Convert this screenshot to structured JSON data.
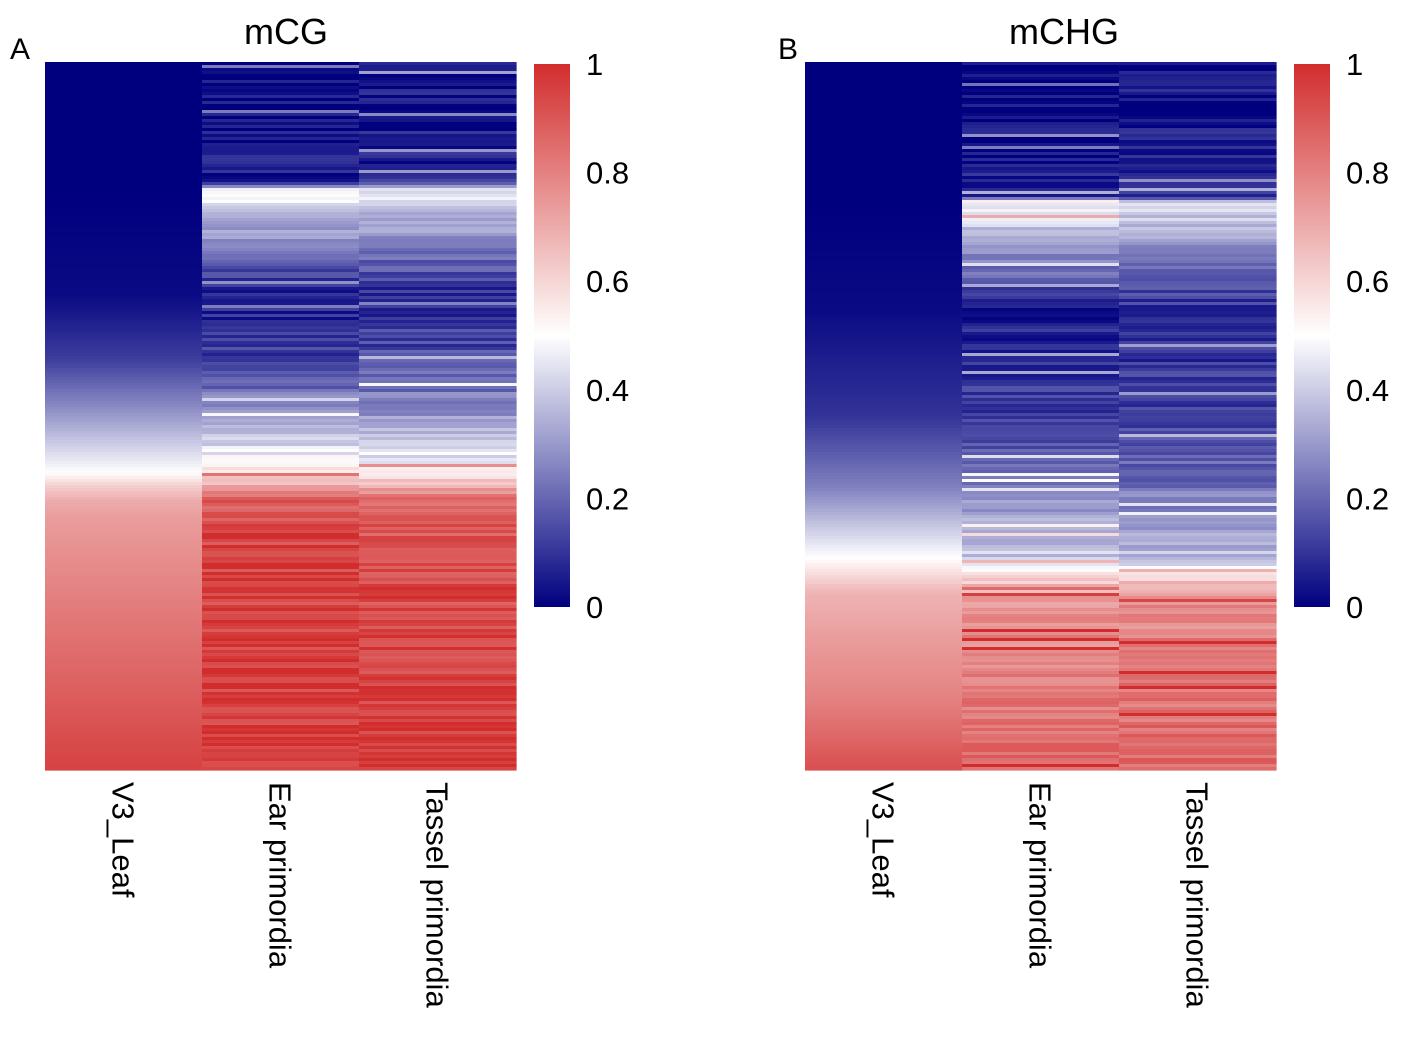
{
  "chart_data": [
    {
      "type": "heatmap",
      "panel_label": "A",
      "title": "mCG",
      "columns": [
        "V3_Leaf",
        "Ear primordia",
        "Tassel primordia"
      ],
      "colorbar": {
        "min": 0,
        "max": 1,
        "ticks": [
          "0",
          "0.2",
          "0.4",
          "0.6",
          "0.8",
          "1"
        ],
        "colors": [
          "#00007f",
          "#ffffff",
          "#d22d2d"
        ]
      },
      "row_profile": {
        "row_fraction": [
          0,
          0.1,
          0.17,
          0.18,
          0.33,
          0.42,
          0.5,
          0.58,
          0.6,
          0.62,
          0.65,
          0.75,
          0.85,
          1.0
        ],
        "series": [
          {
            "name": "V3_Leaf",
            "values": [
              0.0,
              0.0,
              0.0,
              0.0,
              0.02,
              0.12,
              0.3,
              0.5,
              0.62,
              0.7,
              0.74,
              0.8,
              0.86,
              0.95
            ]
          },
          {
            "name": "Ear primordia",
            "values": [
              0.02,
              0.03,
              0.06,
              0.5,
              0.05,
              0.12,
              0.3,
              0.55,
              0.72,
              0.88,
              0.92,
              0.94,
              0.95,
              0.97
            ]
          },
          {
            "name": "Tassel primordia",
            "values": [
              0.04,
              0.05,
              0.08,
              0.45,
              0.08,
              0.15,
              0.3,
              0.52,
              0.7,
              0.86,
              0.9,
              0.93,
              0.94,
              0.96
            ]
          }
        ]
      }
    },
    {
      "type": "heatmap",
      "panel_label": "B",
      "title": "mCHG",
      "columns": [
        "V3_Leaf",
        "Ear primordia",
        "Tassel primordia"
      ],
      "colorbar": {
        "min": 0,
        "max": 1,
        "ticks": [
          "0",
          "0.2",
          "0.4",
          "0.6",
          "0.8",
          "1"
        ],
        "colors": [
          "#00007f",
          "#ffffff",
          "#d22d2d"
        ]
      },
      "row_profile": {
        "row_fraction": [
          0,
          0.11,
          0.19,
          0.2,
          0.35,
          0.5,
          0.6,
          0.7,
          0.75,
          0.82,
          0.9,
          1.0
        ],
        "series": [
          {
            "name": "V3_Leaf",
            "values": [
              0.0,
              0.0,
              0.0,
              0.0,
              0.02,
              0.1,
              0.25,
              0.5,
              0.68,
              0.74,
              0.8,
              0.92
            ]
          },
          {
            "name": "Ear primordia",
            "values": [
              0.02,
              0.03,
              0.08,
              0.5,
              0.06,
              0.12,
              0.25,
              0.4,
              0.72,
              0.78,
              0.82,
              0.85
            ]
          },
          {
            "name": "Tassel primordia",
            "values": [
              0.04,
              0.05,
              0.1,
              0.45,
              0.08,
              0.12,
              0.22,
              0.38,
              0.76,
              0.8,
              0.83,
              0.86
            ]
          }
        ]
      }
    }
  ]
}
